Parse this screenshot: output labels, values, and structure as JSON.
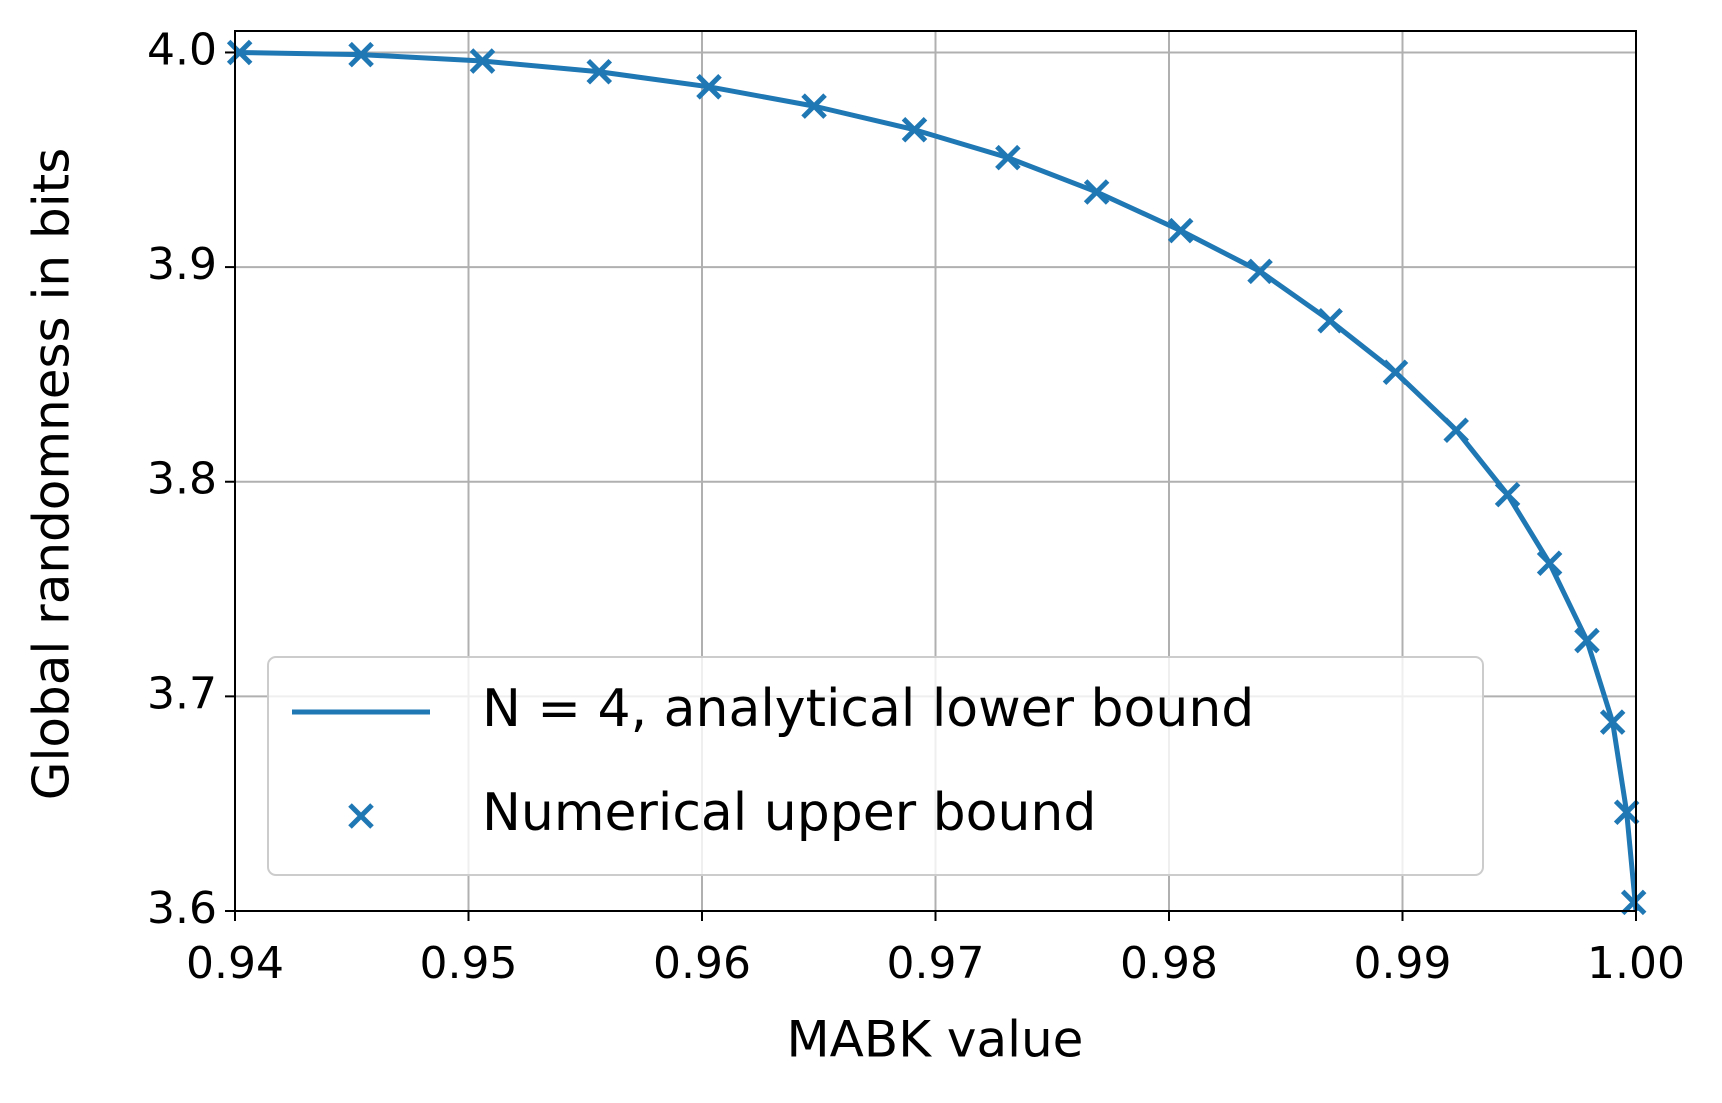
{
  "chart_data": {
    "type": "line",
    "x_label": "MABK value",
    "y_label": "Global randomness in bits",
    "xlim": [
      0.94,
      1.0
    ],
    "ylim": [
      3.6,
      4.01
    ],
    "xticks": [
      0.94,
      0.95,
      0.96,
      0.97,
      0.98,
      0.99,
      {
        "value": 1.0,
        "label": "1.00"
      }
    ],
    "yticks": [
      3.6,
      3.7,
      3.8,
      3.9,
      {
        "value": 4.0,
        "label": "4.0"
      }
    ],
    "grid": true,
    "legend": "lower left",
    "series": [
      {
        "name": "N = 4, analytical lower bound",
        "type": "line",
        "color": "#1f77b4",
        "x": [
          0.94,
          0.9454,
          0.9506,
          0.9556,
          0.9603,
          0.9648,
          0.9691,
          0.9731,
          0.9769,
          0.9805,
          0.9839,
          0.9869,
          0.9897,
          0.9923,
          0.9945,
          0.9963,
          0.9979,
          0.999,
          0.9996,
          1.0
        ],
        "values": [
          4.0,
          3.999,
          3.996,
          3.991,
          3.984,
          3.975,
          3.964,
          3.951,
          3.935,
          3.917,
          3.898,
          3.875,
          3.851,
          3.824,
          3.794,
          3.762,
          3.726,
          3.688,
          3.646,
          3.6
        ]
      },
      {
        "name": "Numerical upper bound",
        "type": "scatter",
        "color": "#1f77b4",
        "x": [
          0.9402,
          0.9454,
          0.9506,
          0.9556,
          0.9603,
          0.9648,
          0.9691,
          0.9731,
          0.9769,
          0.9805,
          0.9839,
          0.9869,
          0.9897,
          0.9923,
          0.9945,
          0.9963,
          0.9979,
          0.999,
          0.9996,
          0.9999
        ],
        "values": [
          4.0,
          3.999,
          3.996,
          3.991,
          3.984,
          3.975,
          3.964,
          3.951,
          3.935,
          3.917,
          3.898,
          3.875,
          3.851,
          3.824,
          3.794,
          3.762,
          3.726,
          3.688,
          3.646,
          3.604
        ]
      }
    ]
  }
}
